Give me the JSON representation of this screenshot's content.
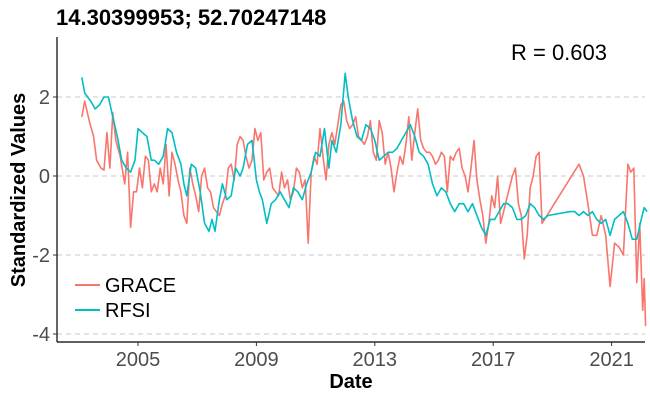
{
  "chart_data": {
    "type": "line",
    "title": "14.30399953; 52.70247148",
    "xlabel": "Date",
    "ylabel": "Standardized Values",
    "annotation": "R = 0.603",
    "xlim": [
      2002.75,
      2021.5
    ],
    "ylim": [
      -4.15,
      3.45
    ],
    "x_ticks": [
      2005,
      2009,
      2013,
      2017,
      2021
    ],
    "y_ticks": [
      2,
      0,
      -2,
      -4
    ],
    "grid": "horizontal-dashed",
    "legend": "bottom-left",
    "series": [
      {
        "name": "GRACE",
        "color": "#F8766D",
        "points": [
          [
            2003.1,
            1.5
          ],
          [
            2003.2,
            1.9
          ],
          [
            2003.35,
            1.4
          ],
          [
            2003.5,
            1.0
          ],
          [
            2003.6,
            0.4
          ],
          [
            2003.75,
            0.2
          ],
          [
            2003.85,
            0.15
          ],
          [
            2003.95,
            1.1
          ],
          [
            2004.05,
            0.2
          ],
          [
            2004.15,
            1.6
          ],
          [
            2004.25,
            0.9
          ],
          [
            2004.4,
            0.5
          ],
          [
            2004.55,
            -0.2
          ],
          [
            2004.65,
            0.6
          ],
          [
            2004.75,
            -1.3
          ],
          [
            2004.85,
            -0.4
          ],
          [
            2004.95,
            -0.4
          ],
          [
            2005.05,
            0.2
          ],
          [
            2005.15,
            -0.3
          ],
          [
            2005.25,
            0.5
          ],
          [
            2005.35,
            0.4
          ],
          [
            2005.45,
            -0.4
          ],
          [
            2005.55,
            -0.2
          ],
          [
            2005.65,
            -0.4
          ],
          [
            2005.75,
            0.2
          ],
          [
            2005.85,
            -0.2
          ],
          [
            2005.95,
            0.8
          ],
          [
            2006.05,
            -0.5
          ],
          [
            2006.15,
            0.6
          ],
          [
            2006.25,
            0.3
          ],
          [
            2006.35,
            -0.1
          ],
          [
            2006.45,
            -0.4
          ],
          [
            2006.55,
            -1.0
          ],
          [
            2006.65,
            -1.2
          ],
          [
            2006.75,
            0.2
          ],
          [
            2006.85,
            -0.2
          ],
          [
            2006.95,
            -0.5
          ],
          [
            2007.05,
            -0.9
          ],
          [
            2007.15,
            0.0
          ],
          [
            2007.25,
            0.2
          ],
          [
            2007.35,
            -0.3
          ],
          [
            2007.45,
            -0.4
          ],
          [
            2007.55,
            -0.8
          ],
          [
            2007.65,
            -0.9
          ],
          [
            2007.75,
            -1.0
          ],
          [
            2007.85,
            -0.7
          ],
          [
            2007.95,
            -0.5
          ],
          [
            2008.05,
            0.2
          ],
          [
            2008.15,
            0.3
          ],
          [
            2008.25,
            -0.1
          ],
          [
            2008.35,
            0.8
          ],
          [
            2008.45,
            1.0
          ],
          [
            2008.55,
            0.9
          ],
          [
            2008.65,
            0.5
          ],
          [
            2008.75,
            0.2
          ],
          [
            2008.85,
            0.4
          ],
          [
            2008.95,
            1.2
          ],
          [
            2009.05,
            0.9
          ],
          [
            2009.15,
            1.1
          ],
          [
            2009.25,
            -0.1
          ],
          [
            2009.35,
            0.1
          ],
          [
            2009.45,
            0.2
          ],
          [
            2009.55,
            -0.3
          ],
          [
            2009.65,
            -0.4
          ],
          [
            2009.75,
            -0.5
          ],
          [
            2009.85,
            0.1
          ],
          [
            2009.95,
            -0.3
          ],
          [
            2010.05,
            -0.1
          ],
          [
            2010.15,
            -0.6
          ],
          [
            2010.25,
            -0.4
          ],
          [
            2010.35,
            0.2
          ],
          [
            2010.45,
            0.1
          ],
          [
            2010.55,
            -0.3
          ],
          [
            2010.65,
            -0.1
          ],
          [
            2010.75,
            -1.7
          ],
          [
            2010.85,
            0.1
          ],
          [
            2010.95,
            0.5
          ],
          [
            2011.05,
            0.3
          ],
          [
            2011.15,
            1.2
          ],
          [
            2011.25,
            0.5
          ],
          [
            2011.35,
            -0.1
          ],
          [
            2011.45,
            0.8
          ],
          [
            2011.55,
            1.1
          ],
          [
            2011.65,
            0.8
          ],
          [
            2011.75,
            1.3
          ],
          [
            2011.85,
            1.8
          ],
          [
            2011.95,
            1.9
          ],
          [
            2012.05,
            1.4
          ],
          [
            2012.15,
            1.2
          ],
          [
            2012.25,
            1.3
          ],
          [
            2012.35,
            1.5
          ],
          [
            2012.45,
            1.0
          ],
          [
            2012.55,
            0.9
          ],
          [
            2012.65,
            0.8
          ],
          [
            2012.75,
            1.0
          ],
          [
            2012.85,
            1.4
          ],
          [
            2012.95,
            0.6
          ],
          [
            2013.05,
            0.4
          ],
          [
            2013.15,
            1.4
          ],
          [
            2013.25,
            1.1
          ],
          [
            2013.35,
            0.3
          ],
          [
            2013.45,
            0.6
          ],
          [
            2013.55,
            0.2
          ],
          [
            2013.65,
            -0.4
          ],
          [
            2013.75,
            0.1
          ],
          [
            2013.85,
            0.5
          ],
          [
            2013.95,
            0.3
          ],
          [
            2014.05,
            0.8
          ],
          [
            2014.15,
            1.5
          ],
          [
            2014.25,
            0.4
          ],
          [
            2014.35,
            1.1
          ],
          [
            2014.45,
            1.7
          ],
          [
            2014.55,
            0.9
          ],
          [
            2014.65,
            0.7
          ],
          [
            2014.75,
            0.6
          ],
          [
            2014.85,
            0.6
          ],
          [
            2014.95,
            0.5
          ],
          [
            2015.05,
            0.3
          ],
          [
            2015.15,
            0.4
          ],
          [
            2015.25,
            0.6
          ],
          [
            2015.35,
            0.5
          ],
          [
            2015.45,
            -0.4
          ],
          [
            2015.55,
            0.5
          ],
          [
            2015.65,
            0.4
          ],
          [
            2015.75,
            0.6
          ],
          [
            2015.85,
            0.7
          ],
          [
            2015.95,
            0.2
          ],
          [
            2016.05,
            0.0
          ],
          [
            2016.15,
            -0.4
          ],
          [
            2016.25,
            0.2
          ],
          [
            2016.35,
            0.9
          ],
          [
            2016.45,
            -0.1
          ],
          [
            2016.55,
            -0.6
          ],
          [
            2016.65,
            -1.0
          ],
          [
            2016.75,
            -1.7
          ],
          [
            2016.85,
            -1.2
          ],
          [
            2016.95,
            -0.5
          ],
          [
            2017.05,
            -0.8
          ],
          [
            2017.15,
            0.0
          ],
          [
            2017.25,
            -1.2
          ],
          [
            2017.35,
            -0.9
          ],
          [
            2017.45,
            -0.6
          ],
          [
            2017.55,
            -0.3
          ],
          [
            2017.65,
            0.0
          ],
          [
            2017.75,
            0.2
          ],
          [
            2017.85,
            -0.7
          ],
          [
            2017.95,
            -1.0
          ],
          [
            2018.05,
            -2.1
          ],
          [
            2018.15,
            -1.5
          ],
          [
            2018.25,
            -0.3
          ],
          [
            2018.35,
            0.0
          ],
          [
            2018.45,
            0.5
          ],
          [
            2018.55,
            0.6
          ],
          [
            2018.65,
            -1.2
          ],
          [
            2019.9,
            0.3
          ],
          [
            2020.05,
            0.0
          ],
          [
            2020.2,
            -0.7
          ],
          [
            2020.35,
            -1.5
          ],
          [
            2020.5,
            -1.5
          ],
          [
            2020.65,
            -1.0
          ],
          [
            2020.8,
            -1.5
          ],
          [
            2020.95,
            -2.8
          ],
          [
            2021.1,
            -1.7
          ],
          [
            2021.25,
            -1.8
          ],
          [
            2021.4,
            -2.0
          ],
          [
            2021.55,
            0.3
          ],
          [
            2021.65,
            0.1
          ],
          [
            2021.75,
            0.2
          ],
          [
            2021.85,
            -2.7
          ],
          [
            2021.95,
            -1.2
          ],
          [
            2022.05,
            -3.4
          ],
          [
            2022.1,
            -2.6
          ],
          [
            2022.15,
            -3.8
          ]
        ]
      },
      {
        "name": "RFSI",
        "color": "#00BFC4",
        "points": [
          [
            2003.1,
            2.5
          ],
          [
            2003.2,
            2.1
          ],
          [
            2003.4,
            1.9
          ],
          [
            2003.55,
            1.7
          ],
          [
            2003.7,
            1.8
          ],
          [
            2003.85,
            2.0
          ],
          [
            2004.0,
            2.0
          ],
          [
            2004.15,
            1.5
          ],
          [
            2004.3,
            1.0
          ],
          [
            2004.45,
            0.4
          ],
          [
            2004.6,
            0.2
          ],
          [
            2004.75,
            0.1
          ],
          [
            2004.9,
            0.4
          ],
          [
            2005.0,
            1.2
          ],
          [
            2005.15,
            1.1
          ],
          [
            2005.3,
            1.0
          ],
          [
            2005.45,
            0.4
          ],
          [
            2005.55,
            0.4
          ],
          [
            2005.7,
            0.3
          ],
          [
            2005.85,
            0.5
          ],
          [
            2006.0,
            1.2
          ],
          [
            2006.15,
            1.1
          ],
          [
            2006.3,
            0.6
          ],
          [
            2006.45,
            0.3
          ],
          [
            2006.55,
            -0.2
          ],
          [
            2006.65,
            -0.5
          ],
          [
            2006.8,
            0.3
          ],
          [
            2006.95,
            0.2
          ],
          [
            2007.1,
            -0.4
          ],
          [
            2007.25,
            -1.2
          ],
          [
            2007.4,
            -1.4
          ],
          [
            2007.5,
            -1.1
          ],
          [
            2007.6,
            -1.4
          ],
          [
            2007.75,
            -0.6
          ],
          [
            2007.85,
            -0.2
          ],
          [
            2008.0,
            -0.6
          ],
          [
            2008.15,
            -0.5
          ],
          [
            2008.3,
            0.2
          ],
          [
            2008.45,
            0.0
          ],
          [
            2008.55,
            0.2
          ],
          [
            2008.7,
            0.8
          ],
          [
            2008.85,
            0.9
          ],
          [
            2009.0,
            -0.1
          ],
          [
            2009.1,
            -0.4
          ],
          [
            2009.2,
            -0.6
          ],
          [
            2009.35,
            -1.2
          ],
          [
            2009.5,
            -0.7
          ],
          [
            2009.65,
            -0.6
          ],
          [
            2009.8,
            -0.4
          ],
          [
            2009.95,
            -0.6
          ],
          [
            2010.1,
            -0.8
          ],
          [
            2010.25,
            -0.3
          ],
          [
            2010.4,
            -0.4
          ],
          [
            2010.55,
            -0.6
          ],
          [
            2010.7,
            -0.2
          ],
          [
            2010.85,
            0.1
          ],
          [
            2011.0,
            0.6
          ],
          [
            2011.15,
            0.5
          ],
          [
            2011.3,
            1.2
          ],
          [
            2011.45,
            0.2
          ],
          [
            2011.55,
            0.9
          ],
          [
            2011.7,
            0.6
          ],
          [
            2011.85,
            1.3
          ],
          [
            2012.0,
            2.6
          ],
          [
            2012.1,
            2.0
          ],
          [
            2012.25,
            1.4
          ],
          [
            2012.4,
            1.0
          ],
          [
            2012.55,
            0.9
          ],
          [
            2012.7,
            1.3
          ],
          [
            2012.85,
            1.2
          ],
          [
            2013.0,
            0.9
          ],
          [
            2013.15,
            0.4
          ],
          [
            2013.3,
            0.5
          ],
          [
            2013.45,
            0.6
          ],
          [
            2013.6,
            0.6
          ],
          [
            2013.75,
            0.7
          ],
          [
            2013.9,
            0.9
          ],
          [
            2014.05,
            1.1
          ],
          [
            2014.2,
            1.3
          ],
          [
            2014.35,
            1.0
          ],
          [
            2014.5,
            0.6
          ],
          [
            2014.65,
            0.5
          ],
          [
            2014.8,
            0.3
          ],
          [
            2014.95,
            -0.2
          ],
          [
            2015.1,
            -0.5
          ],
          [
            2015.25,
            -0.3
          ],
          [
            2015.4,
            -0.4
          ],
          [
            2015.55,
            -0.7
          ],
          [
            2015.7,
            -0.9
          ],
          [
            2015.85,
            -0.7
          ],
          [
            2016.0,
            -0.7
          ],
          [
            2016.15,
            -0.9
          ],
          [
            2016.3,
            -0.7
          ],
          [
            2016.45,
            -1.0
          ],
          [
            2016.6,
            -1.3
          ],
          [
            2016.75,
            -1.5
          ],
          [
            2016.9,
            -1.1
          ],
          [
            2017.05,
            -1.1
          ],
          [
            2017.2,
            -0.9
          ],
          [
            2017.35,
            -0.7
          ],
          [
            2017.5,
            -0.7
          ],
          [
            2017.65,
            -0.8
          ],
          [
            2017.8,
            -1.1
          ],
          [
            2017.95,
            -1.1
          ],
          [
            2018.1,
            -1.0
          ],
          [
            2018.25,
            -0.7
          ],
          [
            2018.4,
            -0.8
          ],
          [
            2018.55,
            -1.0
          ],
          [
            2018.7,
            -1.1
          ],
          [
            2018.85,
            -1.0
          ],
          [
            2019.6,
            -0.9
          ],
          [
            2019.75,
            -0.9
          ],
          [
            2019.9,
            -1.0
          ],
          [
            2020.05,
            -0.9
          ],
          [
            2020.2,
            -1.0
          ],
          [
            2020.35,
            -0.9
          ],
          [
            2020.5,
            -1.1
          ],
          [
            2020.65,
            -1.2
          ],
          [
            2020.8,
            -1.1
          ],
          [
            2020.95,
            -1.5
          ],
          [
            2021.1,
            -1.1
          ],
          [
            2021.25,
            -1.0
          ],
          [
            2021.4,
            -0.9
          ],
          [
            2021.55,
            -1.2
          ],
          [
            2021.7,
            -1.6
          ],
          [
            2021.85,
            -1.6
          ],
          [
            2022.0,
            -1.1
          ],
          [
            2022.1,
            -0.8
          ],
          [
            2022.2,
            -0.9
          ]
        ]
      }
    ]
  }
}
